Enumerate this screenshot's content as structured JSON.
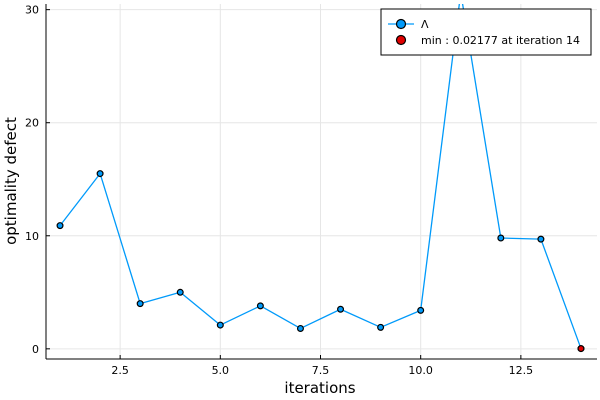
{
  "chart_data": {
    "type": "line",
    "title": "",
    "xlabel": "iterations",
    "ylabel": "optimality defect",
    "xlim": [
      0.65,
      14.4
    ],
    "ylim": [
      -0.9,
      30.5
    ],
    "xticks": [
      2.5,
      5.0,
      7.5,
      10.0,
      12.5
    ],
    "xtick_labels": [
      "2.5",
      "5.0",
      "7.5",
      "10.0",
      "12.5"
    ],
    "yticks": [
      0,
      10,
      20,
      30
    ],
    "ytick_labels": [
      "0",
      "10",
      "20",
      "30"
    ],
    "grid": true,
    "legend_position": "top-right",
    "series": [
      {
        "name": "Λ",
        "color": "#009AFA",
        "x": [
          1,
          2,
          3,
          4,
          5,
          6,
          7,
          8,
          9,
          10,
          11,
          12,
          13,
          14
        ],
        "y": [
          10.9,
          15.5,
          4.0,
          5.0,
          2.1,
          3.8,
          1.8,
          3.5,
          1.9,
          3.4,
          31.5,
          9.8,
          9.7,
          0.02177
        ]
      },
      {
        "name": "min : 0.02177 at iteration 14",
        "color": "#E00000",
        "marker_only": true,
        "x": [
          14
        ],
        "y": [
          0.02177
        ]
      }
    ]
  }
}
